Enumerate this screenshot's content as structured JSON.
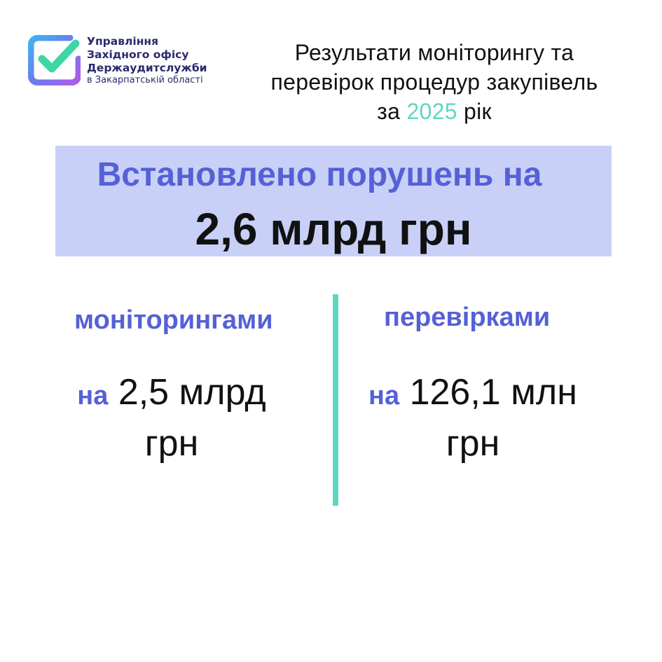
{
  "org": {
    "line1": "Управління",
    "line2": "Західного офісу",
    "line3": "Держаудитслужби",
    "line4": "в Закарпатській області"
  },
  "title": {
    "line1": "Результати моніторингу та",
    "line2": "перевірок процедур закупівель",
    "prefix": "за",
    "year": "2025",
    "suffix": "рік"
  },
  "banner": {
    "line1": "Встановлено порушень на",
    "line2": "2,6 млрд грн"
  },
  "left": {
    "label": "моніторингами",
    "prefix": "на",
    "amount": "2,5 млрд",
    "unit": "грн"
  },
  "right": {
    "label": "перевірками",
    "prefix": "на",
    "amount": "126,1 млн",
    "unit": "грн"
  },
  "colors": {
    "accent": "#5660d6",
    "teal": "#5fd6c0",
    "banner": "#c9d0f7"
  }
}
